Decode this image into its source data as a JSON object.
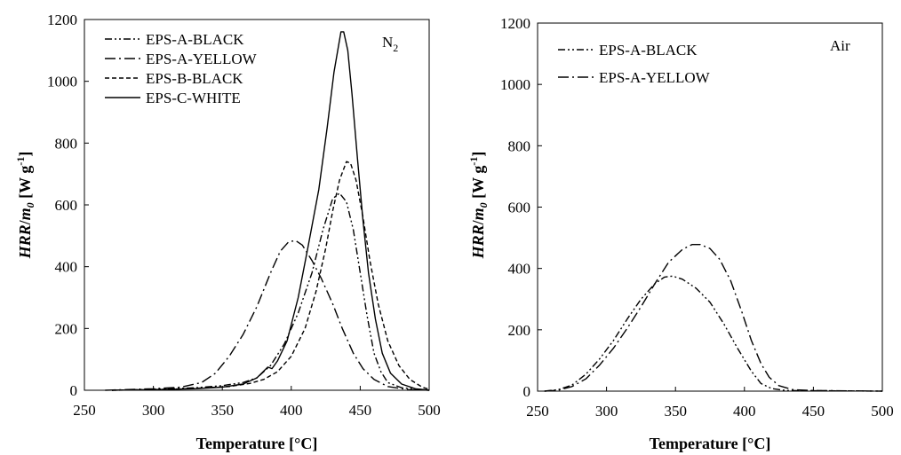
{
  "chart_data": [
    {
      "type": "line",
      "annotation": "N",
      "annotation_sub": "2",
      "xlabel": "Temperature [°C]",
      "ylabel_parts": {
        "hrr": "HRR",
        "slash": "/",
        "m": "m",
        "m_sub": "0",
        "unit_open": " [W g",
        "unit_sup": "-1",
        "unit_close": "]"
      },
      "xlim": [
        250,
        500
      ],
      "ylim": [
        0,
        1200
      ],
      "x_ticks": [
        "250",
        "300",
        "350",
        "400",
        "450",
        "500"
      ],
      "y_ticks": [
        "0",
        "200",
        "400",
        "600",
        "800",
        "1000",
        "1200"
      ],
      "legend_position": "top-left",
      "series": [
        {
          "name": "EPS-A-BLACK",
          "dash": "8,3,2,3,2,3",
          "points": [
            [
              270,
              0
            ],
            [
              300,
              3
            ],
            [
              330,
              8
            ],
            [
              350,
              15
            ],
            [
              365,
              25
            ],
            [
              375,
              40
            ],
            [
              385,
              80
            ],
            [
              395,
              150
            ],
            [
              405,
              250
            ],
            [
              415,
              380
            ],
            [
              423,
              520
            ],
            [
              430,
              620
            ],
            [
              435,
              638
            ],
            [
              440,
              610
            ],
            [
              445,
              520
            ],
            [
              450,
              380
            ],
            [
              455,
              240
            ],
            [
              460,
              120
            ],
            [
              465,
              60
            ],
            [
              470,
              25
            ],
            [
              480,
              8
            ],
            [
              500,
              0
            ]
          ]
        },
        {
          "name": "EPS-A-YELLOW",
          "dash": "12,4,2,4",
          "points": [
            [
              265,
              0
            ],
            [
              300,
              5
            ],
            [
              320,
              10
            ],
            [
              335,
              25
            ],
            [
              345,
              55
            ],
            [
              355,
              110
            ],
            [
              365,
              180
            ],
            [
              375,
              270
            ],
            [
              385,
              380
            ],
            [
              392,
              450
            ],
            [
              398,
              480
            ],
            [
              403,
              485
            ],
            [
              408,
              470
            ],
            [
              415,
              420
            ],
            [
              422,
              360
            ],
            [
              430,
              280
            ],
            [
              437,
              200
            ],
            [
              445,
              120
            ],
            [
              452,
              70
            ],
            [
              460,
              35
            ],
            [
              470,
              12
            ],
            [
              485,
              2
            ],
            [
              500,
              0
            ]
          ]
        },
        {
          "name": "EPS-B-BLACK",
          "dash": "5,3",
          "points": [
            [
              270,
              0
            ],
            [
              300,
              2
            ],
            [
              330,
              6
            ],
            [
              355,
              12
            ],
            [
              370,
              22
            ],
            [
              380,
              35
            ],
            [
              390,
              60
            ],
            [
              400,
              110
            ],
            [
              410,
              200
            ],
            [
              418,
              320
            ],
            [
              425,
              460
            ],
            [
              430,
              580
            ],
            [
              435,
              680
            ],
            [
              440,
              740
            ],
            [
              443,
              735
            ],
            [
              447,
              680
            ],
            [
              452,
              560
            ],
            [
              457,
              420
            ],
            [
              463,
              280
            ],
            [
              470,
              160
            ],
            [
              478,
              80
            ],
            [
              486,
              35
            ],
            [
              495,
              10
            ],
            [
              500,
              3
            ]
          ]
        },
        {
          "name": "EPS-C-WHITE",
          "dash": "",
          "points": [
            [
              270,
              0
            ],
            [
              300,
              2
            ],
            [
              330,
              5
            ],
            [
              350,
              10
            ],
            [
              365,
              20
            ],
            [
              375,
              40
            ],
            [
              383,
              75
            ],
            [
              386,
              70
            ],
            [
              390,
              95
            ],
            [
              397,
              160
            ],
            [
              405,
              300
            ],
            [
              412,
              460
            ],
            [
              420,
              650
            ],
            [
              426,
              850
            ],
            [
              431,
              1030
            ],
            [
              436,
              1160
            ],
            [
              438,
              1160
            ],
            [
              441,
              1100
            ],
            [
              444,
              960
            ],
            [
              448,
              750
            ],
            [
              452,
              550
            ],
            [
              456,
              380
            ],
            [
              461,
              230
            ],
            [
              466,
              120
            ],
            [
              472,
              55
            ],
            [
              480,
              20
            ],
            [
              490,
              5
            ],
            [
              500,
              0
            ]
          ]
        }
      ]
    },
    {
      "type": "line",
      "annotation": "Air",
      "xlabel": "Temperature [°C]",
      "ylabel_parts": {
        "hrr": "HRR",
        "slash": "/",
        "m": "m",
        "m_sub": "0",
        "unit_open": " [W g",
        "unit_sup": "-1",
        "unit_close": "]"
      },
      "xlim": [
        250,
        500
      ],
      "ylim": [
        0,
        1200
      ],
      "x_ticks": [
        "250",
        "300",
        "350",
        "400",
        "450",
        "500"
      ],
      "y_ticks": [
        "0",
        "200",
        "400",
        "600",
        "800",
        "1000",
        "1200"
      ],
      "legend_position": "top-left",
      "series": [
        {
          "name": "EPS-A-BLACK",
          "dash": "8,3,2,3,2,3",
          "points": [
            [
              255,
              0
            ],
            [
              265,
              5
            ],
            [
              275,
              20
            ],
            [
              285,
              55
            ],
            [
              295,
              105
            ],
            [
              305,
              165
            ],
            [
              315,
              235
            ],
            [
              325,
              300
            ],
            [
              335,
              350
            ],
            [
              342,
              372
            ],
            [
              348,
              375
            ],
            [
              355,
              365
            ],
            [
              365,
              335
            ],
            [
              375,
              290
            ],
            [
              385,
              220
            ],
            [
              395,
              140
            ],
            [
              405,
              65
            ],
            [
              412,
              25
            ],
            [
              420,
              8
            ],
            [
              430,
              2
            ],
            [
              500,
              0
            ]
          ]
        },
        {
          "name": "EPS-A-YELLOW",
          "dash": "12,4,2,4",
          "points": [
            [
              255,
              0
            ],
            [
              265,
              3
            ],
            [
              275,
              15
            ],
            [
              285,
              40
            ],
            [
              295,
              85
            ],
            [
              305,
              140
            ],
            [
              315,
              205
            ],
            [
              325,
              275
            ],
            [
              335,
              350
            ],
            [
              345,
              420
            ],
            [
              355,
              462
            ],
            [
              362,
              478
            ],
            [
              368,
              478
            ],
            [
              375,
              465
            ],
            [
              382,
              430
            ],
            [
              390,
              360
            ],
            [
              398,
              260
            ],
            [
              405,
              165
            ],
            [
              412,
              90
            ],
            [
              418,
              45
            ],
            [
              425,
              18
            ],
            [
              435,
              5
            ],
            [
              450,
              2
            ],
            [
              500,
              0
            ]
          ]
        }
      ]
    }
  ]
}
